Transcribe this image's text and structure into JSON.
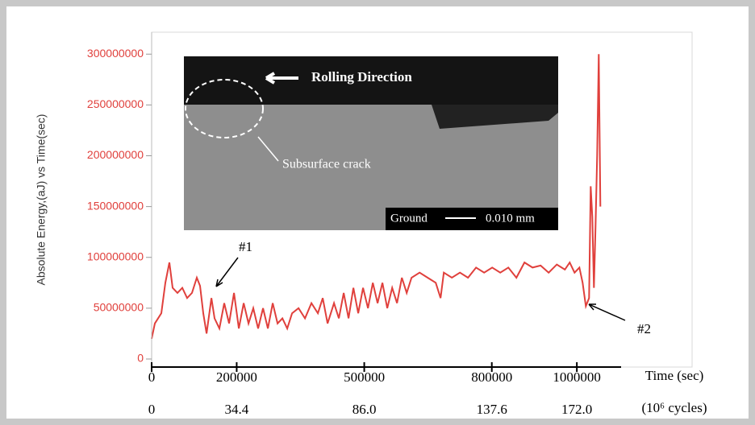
{
  "chart_data": {
    "type": "line",
    "y_label": "Absolute Energy,(aJ) vs Time(sec)",
    "x_label": "Time (sec)",
    "x2_label": "(10⁶ cycles)",
    "xlim": [
      0,
      1271000
    ],
    "ylim": [
      0,
      320000000
    ],
    "xticks": [
      0,
      200000,
      500000,
      800000,
      1000000
    ],
    "x2ticklabels": [
      "0",
      "34.4",
      "86.0",
      "137.6",
      "172.0"
    ],
    "yticks": [
      0,
      50000000,
      100000000,
      150000000,
      200000000,
      250000000,
      300000000
    ],
    "ytick_color": "#e0403c",
    "annotations": [
      "#1",
      "#2"
    ],
    "series": [
      {
        "color": "#e0403c",
        "x": [
          0,
          7600,
          22800,
          32300,
          41800,
          49300,
          60700,
          72100,
          83500,
          94900,
          106300,
          113900,
          121500,
          129100,
          140500,
          148000,
          159400,
          170800,
          182200,
          193600,
          205000,
          216400,
          227800,
          239100,
          250500,
          261900,
          273300,
          284700,
          296100,
          307500,
          318900,
          330300,
          345400,
          360600,
          375800,
          391000,
          402400,
          413800,
          428900,
          440300,
          451700,
          463100,
          474500,
          485900,
          497300,
          508700,
          520100,
          531400,
          542800,
          554200,
          565600,
          577000,
          588400,
          599800,
          611200,
          630100,
          649100,
          668100,
          679500,
          687100,
          706100,
          725000,
          744000,
          763000,
          782000,
          800900,
          819900,
          838900,
          857900,
          876800,
          895800,
          914800,
          933800,
          952800,
          971800,
          983200,
          994600,
          1006000,
          1013500,
          1021100,
          1028700,
          1032500,
          1036300,
          1040100,
          1043900,
          1047700,
          1051500,
          1055300
        ],
        "values": [
          20000000,
          35000000,
          45000000,
          75000000,
          95000000,
          70000000,
          65000000,
          70000000,
          60000000,
          65000000,
          80000000,
          72000000,
          45000000,
          25000000,
          60000000,
          40000000,
          30000000,
          55000000,
          35000000,
          65000000,
          30000000,
          55000000,
          35000000,
          50000000,
          30000000,
          50000000,
          30000000,
          55000000,
          35000000,
          40000000,
          30000000,
          45000000,
          50000000,
          40000000,
          55000000,
          45000000,
          60000000,
          35000000,
          55000000,
          40000000,
          65000000,
          40000000,
          70000000,
          45000000,
          70000000,
          50000000,
          75000000,
          55000000,
          75000000,
          50000000,
          70000000,
          55000000,
          80000000,
          65000000,
          80000000,
          85000000,
          80000000,
          75000000,
          60000000,
          85000000,
          80000000,
          85000000,
          80000000,
          90000000,
          85000000,
          90000000,
          85000000,
          90000000,
          80000000,
          95000000,
          90000000,
          92000000,
          85000000,
          93000000,
          88000000,
          95000000,
          85000000,
          90000000,
          75000000,
          52000000,
          60000000,
          170000000,
          140000000,
          70000000,
          130000000,
          200000000,
          300000000,
          150000000
        ]
      }
    ]
  },
  "inset": {
    "rolling": "Rolling Direction",
    "crack": "Subsurface crack",
    "ground": "Ground",
    "scale": "0.010 mm"
  }
}
